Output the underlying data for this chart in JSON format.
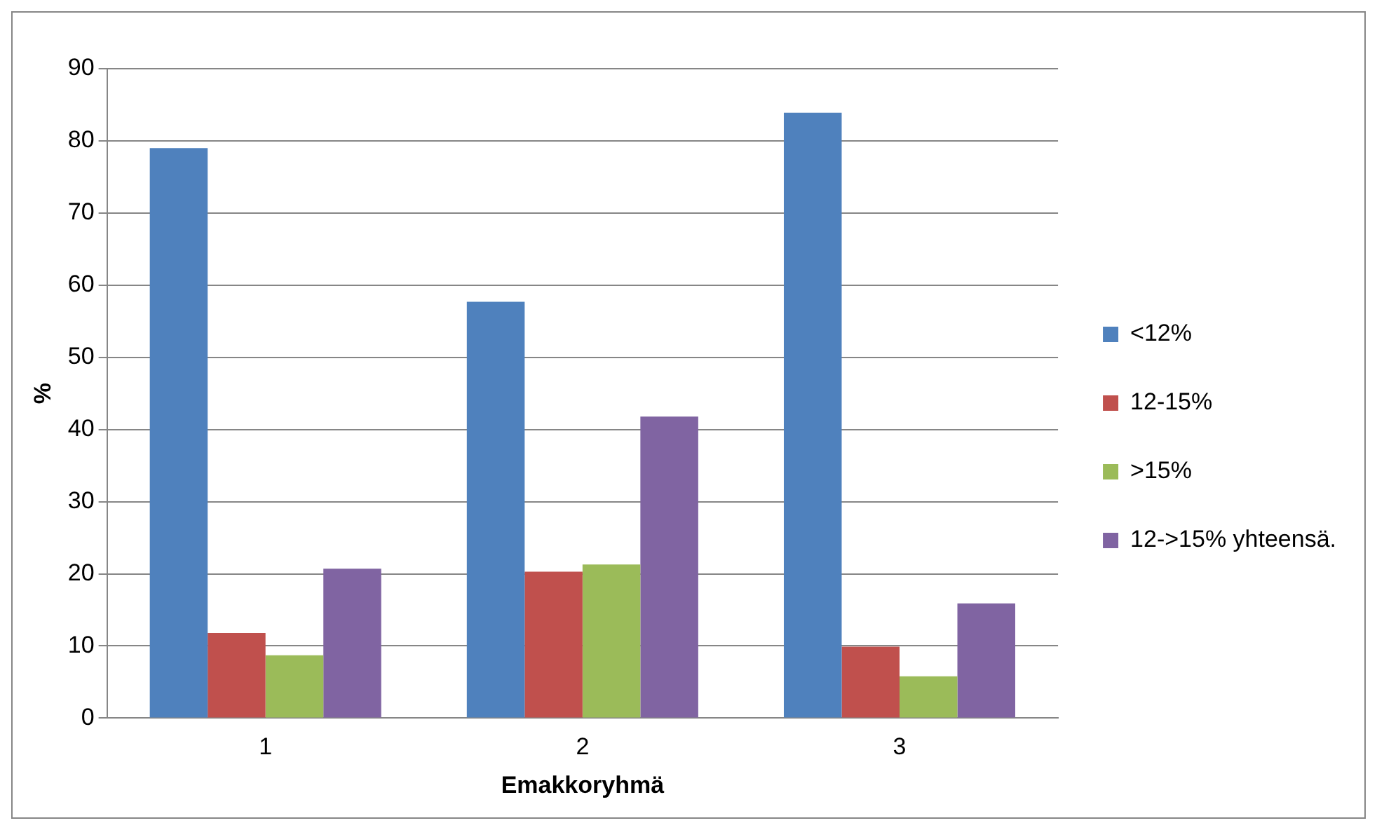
{
  "chart_data": {
    "type": "bar",
    "xlabel": "Emakkoryhmä",
    "ylabel": "%",
    "categories": [
      "1",
      "2",
      "3"
    ],
    "series": [
      {
        "name": "<12%",
        "color": "#4f81bd",
        "values": [
          79,
          57.7,
          83.9
        ]
      },
      {
        "name": "12-15%",
        "color": "#c0504d",
        "values": [
          11.8,
          20.3,
          9.9
        ]
      },
      {
        "name": ">15%",
        "color": "#9bbb59",
        "values": [
          8.7,
          21.3,
          5.8
        ]
      },
      {
        "name": "12->15% yhteensä.",
        "color": "#8064a2",
        "values": [
          20.7,
          41.8,
          15.9
        ]
      }
    ],
    "ylim": [
      0,
      90
    ],
    "yticks": [
      0,
      10,
      20,
      30,
      40,
      50,
      60,
      70,
      80,
      90
    ],
    "grid": "y",
    "legend": "right"
  }
}
